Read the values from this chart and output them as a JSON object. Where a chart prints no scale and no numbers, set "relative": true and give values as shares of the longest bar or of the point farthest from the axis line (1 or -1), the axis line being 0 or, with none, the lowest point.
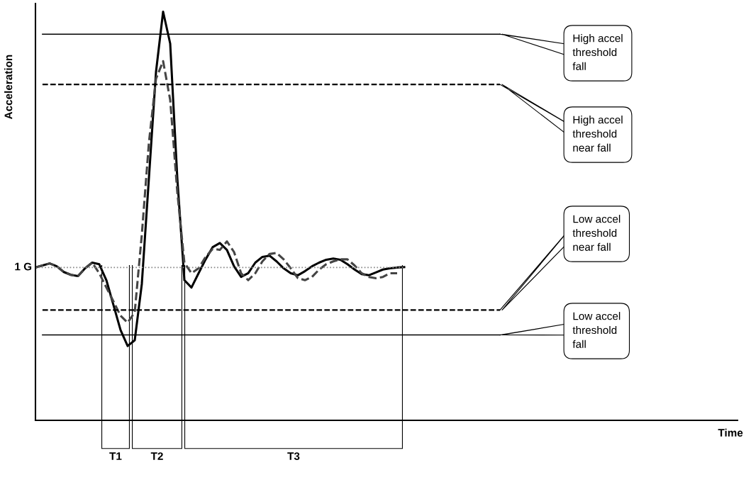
{
  "chart_data": {
    "type": "line",
    "relative": true,
    "ylabel": "Acceleration",
    "grid": false,
    "legend": false,
    "marker": "none",
    "categories": [
      null,
      null,
      null,
      null,
      null,
      null,
      null,
      null,
      null,
      null,
      null,
      null,
      null,
      null,
      null,
      null,
      null,
      null,
      null,
      null,
      null,
      null,
      null,
      null,
      null,
      null,
      null,
      null,
      null,
      null,
      null,
      null,
      null,
      null,
      null,
      null,
      null,
      null,
      null,
      null,
      null,
      null,
      null,
      null,
      null,
      null,
      null,
      null,
      null,
      null,
      null,
      null,
      null
    ],
    "series": [
      {
        "color": "#000000",
        "line_style": "solid",
        "values": [
          0.374,
          0.379,
          0.384,
          0.377,
          0.363,
          0.356,
          0.353,
          0.372,
          0.386,
          0.382,
          0.343,
          0.282,
          0.221,
          0.182,
          0.196,
          0.334,
          0.593,
          0.853,
          1.0,
          0.922,
          0.593,
          0.343,
          0.325,
          0.36,
          0.394,
          0.424,
          0.434,
          0.417,
          0.377,
          0.351,
          0.36,
          0.386,
          0.4,
          0.403,
          0.389,
          0.372,
          0.36,
          0.355,
          0.365,
          0.377,
          0.386,
          0.393,
          0.396,
          0.393,
          0.382,
          0.369,
          0.358,
          0.355,
          0.362,
          0.369,
          0.372,
          0.374,
          0.375
        ]
      },
      {
        "color": "#444444",
        "line_style": "dashed",
        "values": [
          0.374,
          0.379,
          0.384,
          0.377,
          0.363,
          0.356,
          0.353,
          0.372,
          0.386,
          0.36,
          0.325,
          0.291,
          0.256,
          0.239,
          0.265,
          0.455,
          0.68,
          0.836,
          0.879,
          0.784,
          0.559,
          0.386,
          0.36,
          0.372,
          0.4,
          0.42,
          0.417,
          0.438,
          0.412,
          0.36,
          0.343,
          0.36,
          0.389,
          0.407,
          0.41,
          0.394,
          0.372,
          0.348,
          0.343,
          0.351,
          0.369,
          0.382,
          0.389,
          0.394,
          0.394,
          0.379,
          0.36,
          0.351,
          0.348,
          0.351,
          0.36,
          0.36,
          null
        ]
      }
    ],
    "ref_lines": [
      {
        "axis": "y",
        "value": 0.945,
        "label": "High accel\nthreshold\nfall",
        "color": "#000000",
        "line_style": "solid"
      },
      {
        "axis": "y",
        "value": 0.822,
        "label": "High accel\nthreshold\nnear fall",
        "color": "#000000",
        "line_style": "dashed"
      },
      {
        "axis": "y",
        "value": 0.374,
        "label": "1 G",
        "color": "#888888",
        "line_style": "dotted"
      },
      {
        "axis": "y",
        "value": 0.27,
        "label": "Low accel\nthreshold\nnear fall",
        "color": "#000000",
        "line_style": "dashed"
      },
      {
        "axis": "y",
        "value": 0.209,
        "label": "Low accel\nthreshold\nfall",
        "color": "#000000",
        "line_style": "solid"
      }
    ],
    "annotations": [
      "T1",
      "T2",
      "T3",
      "Time"
    ]
  }
}
